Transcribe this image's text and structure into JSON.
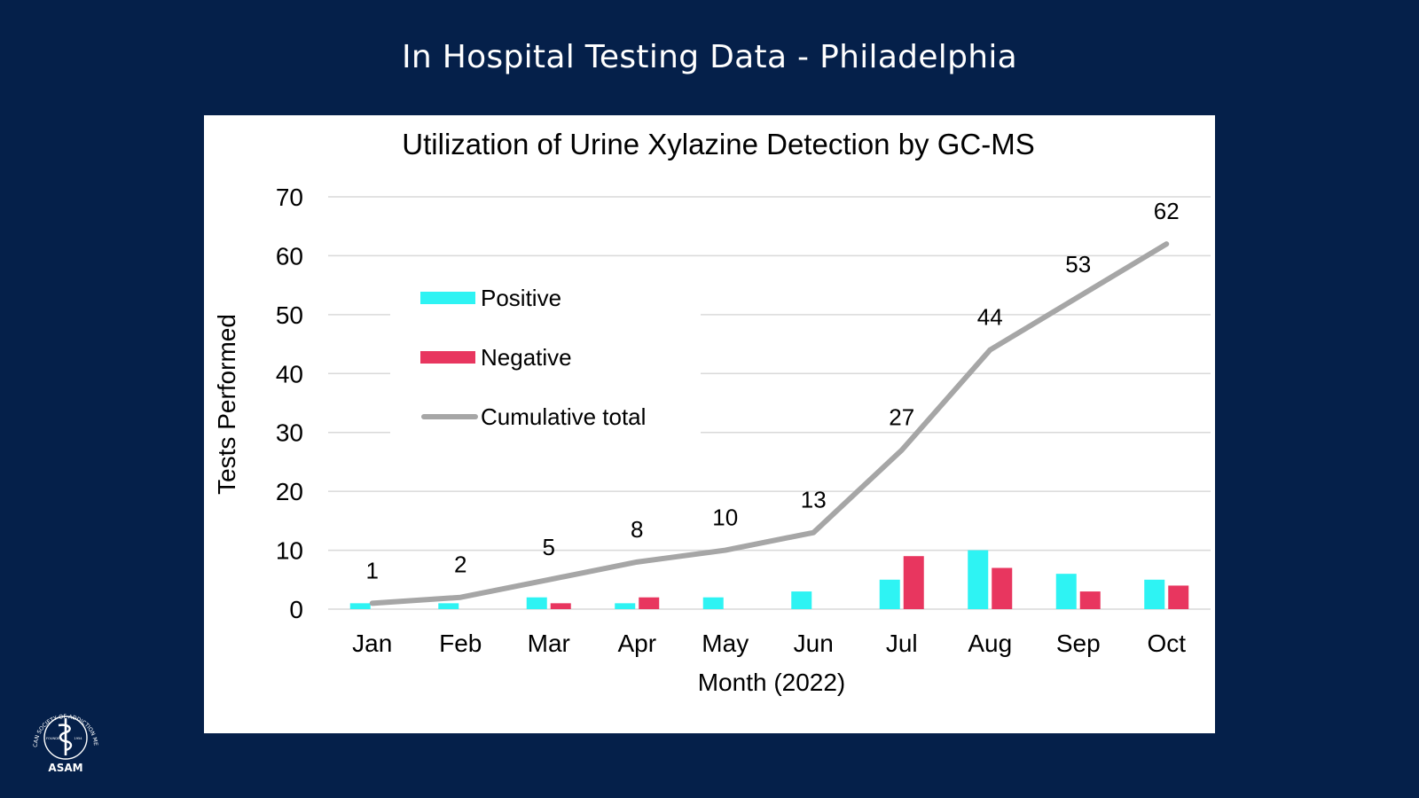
{
  "slide": {
    "title": "In Hospital Testing Data - Philadelphia"
  },
  "logo": {
    "ring_text": "AMERICAN SOCIETY OF ADDICTION MEDICINE",
    "founded": "FOUNDED",
    "year": "1954",
    "name": "ASAM"
  },
  "chart_data": {
    "type": "bar",
    "title": "Utilization of Urine Xylazine Detection by GC-MS",
    "xlabel": "Month (2022)",
    "ylabel": "Tests Performed",
    "ylim": [
      0,
      70
    ],
    "yticks": [
      0,
      10,
      20,
      30,
      40,
      50,
      60,
      70
    ],
    "grid": true,
    "legend_position": "top-left",
    "categories": [
      "Jan",
      "Feb",
      "Mar",
      "Apr",
      "May",
      "Jun",
      "Jul",
      "Aug",
      "Sep",
      "Oct"
    ],
    "series": [
      {
        "name": "Positive",
        "type": "bar",
        "color": "#2ef3f3",
        "values": [
          1,
          1,
          2,
          1,
          2,
          3,
          5,
          10,
          6,
          5
        ]
      },
      {
        "name": "Negative",
        "type": "bar",
        "color": "#e8365f",
        "values": [
          0,
          0,
          1,
          2,
          0,
          0,
          9,
          7,
          3,
          4
        ]
      },
      {
        "name": "Cumulative total",
        "type": "line",
        "color": "#a6a6a6",
        "values": [
          1,
          2,
          5,
          8,
          10,
          13,
          27,
          44,
          53,
          62
        ],
        "data_labels": true
      }
    ]
  }
}
